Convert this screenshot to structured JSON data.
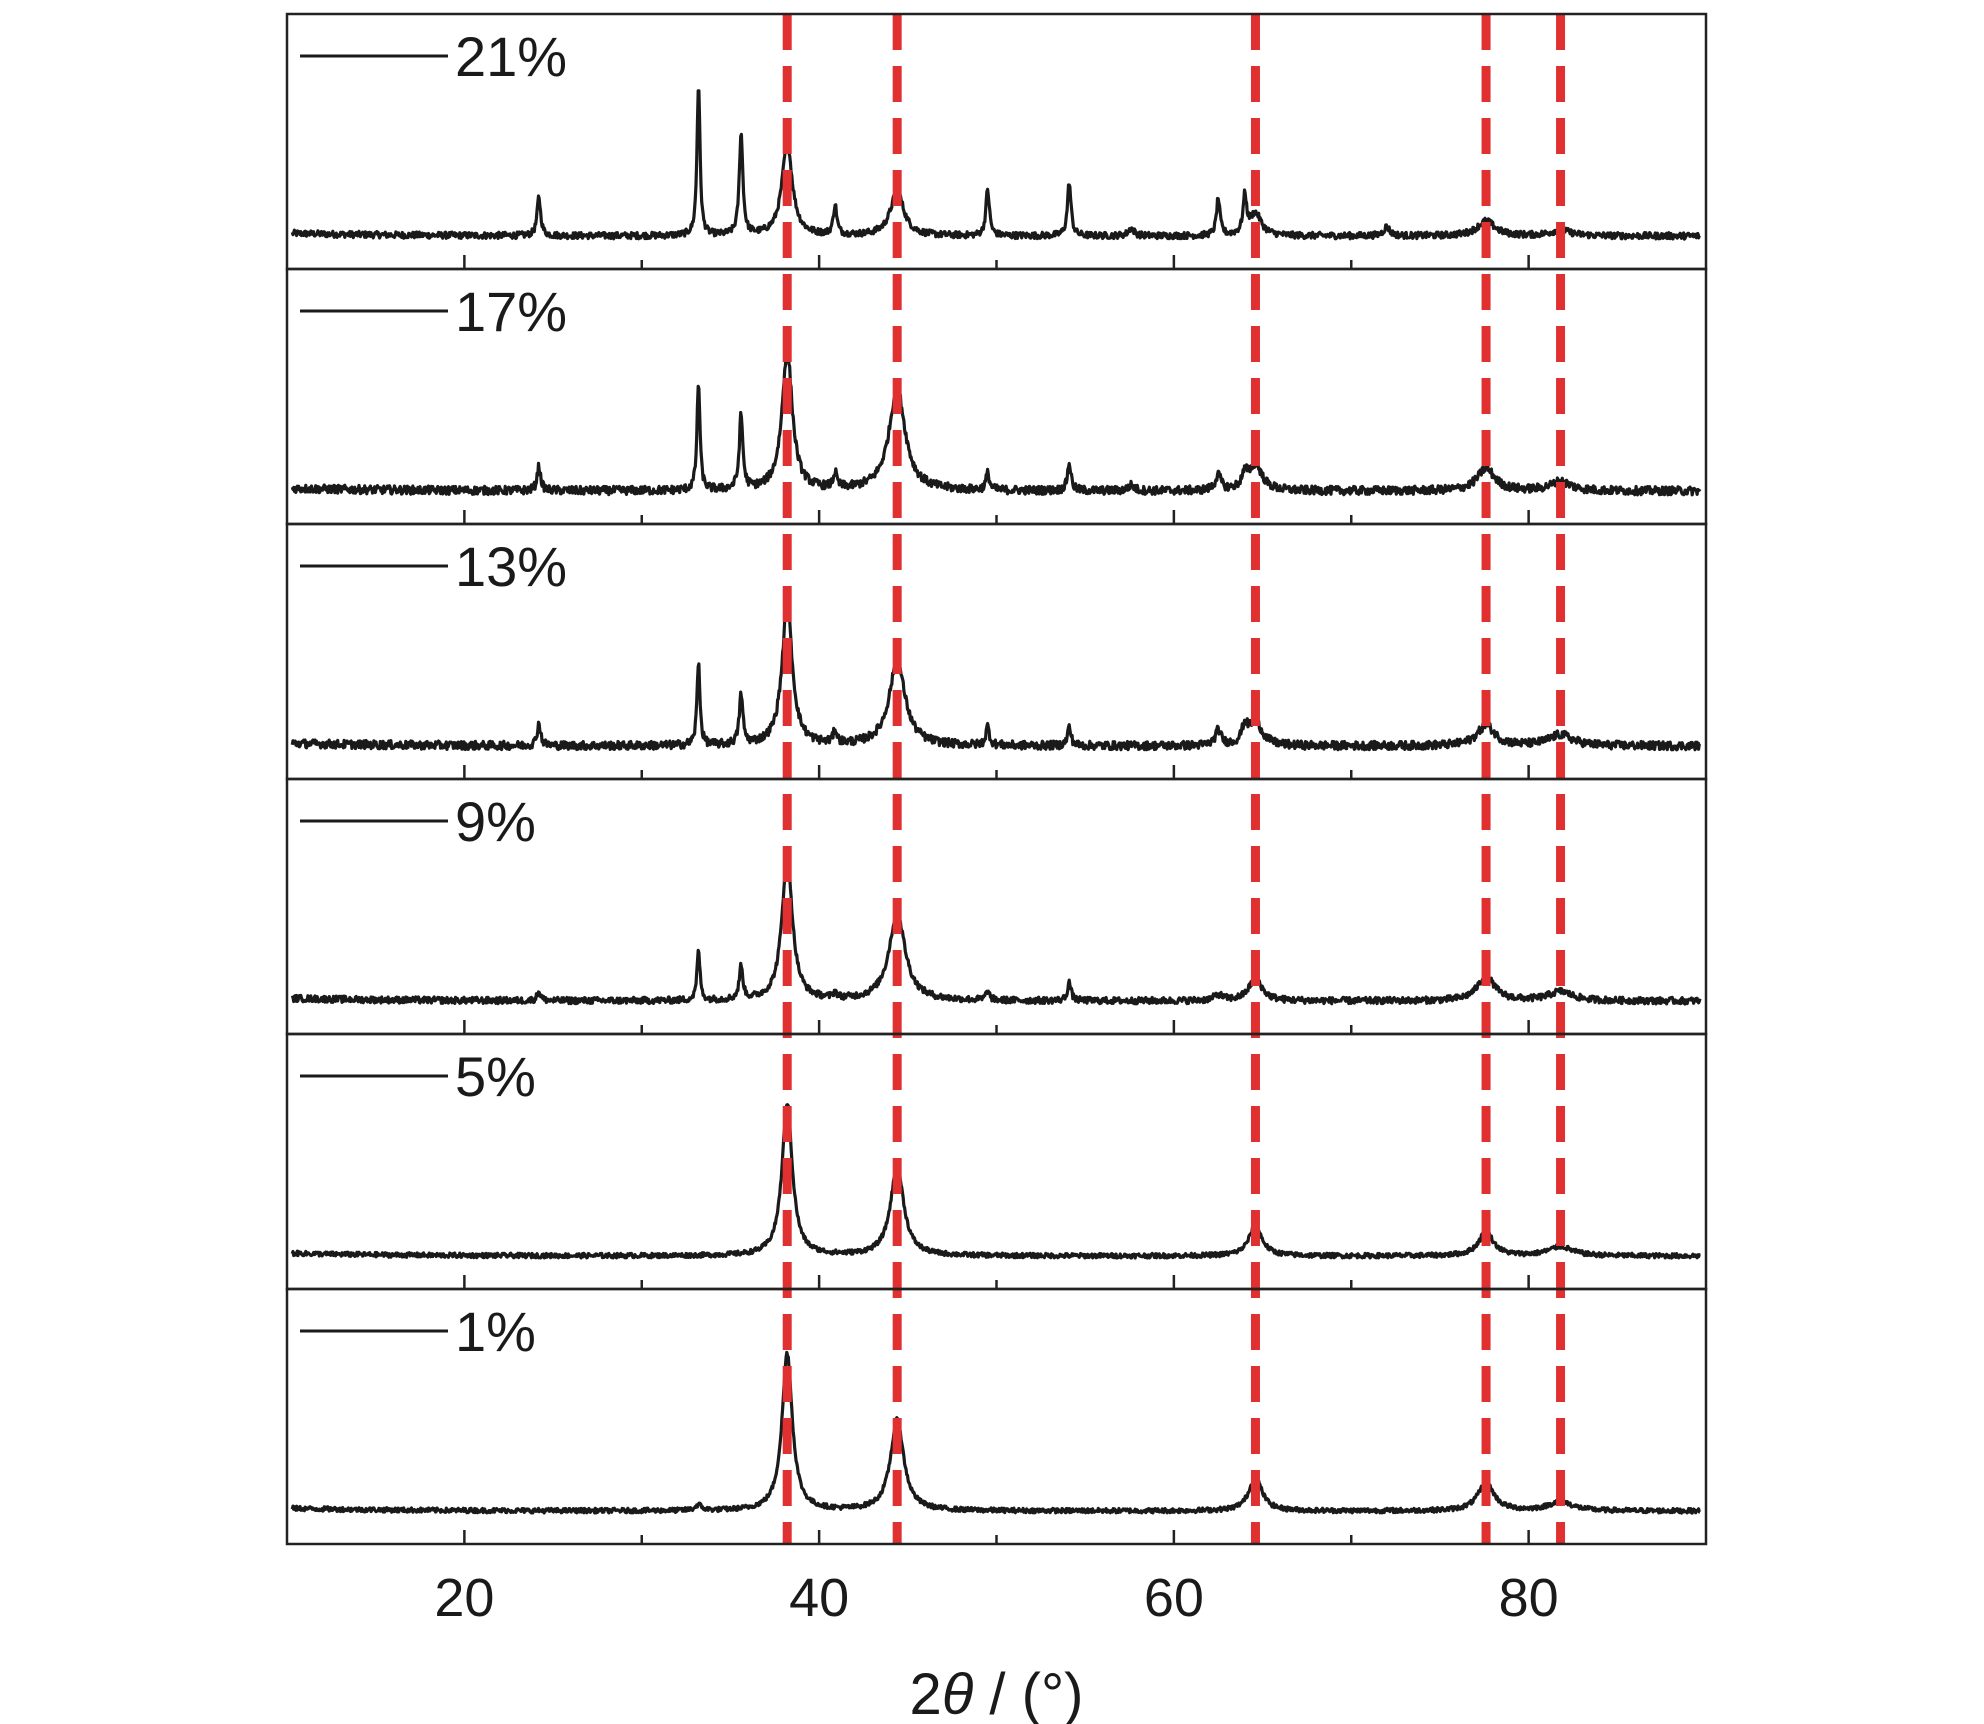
{
  "chart_data": {
    "type": "line",
    "xlabel": "2θ / (°)",
    "xlim": [
      10,
      90
    ],
    "xticks": [
      "20",
      "40",
      "60",
      "80"
    ],
    "grid": false,
    "layout": "stacked panels",
    "reference_lines_2theta": [
      38.2,
      44.4,
      64.6,
      77.6,
      81.8
    ],
    "reference_line_color": "#e03030",
    "trace_color": "#1a1a1a",
    "series": [
      {
        "name": "21%",
        "peaks": [
          {
            "x": 24.2,
            "y": 0.21,
            "w": 0.12
          },
          {
            "x": 33.2,
            "y": 0.82,
            "w": 0.1
          },
          {
            "x": 35.6,
            "y": 0.55,
            "w": 0.12
          },
          {
            "x": 38.2,
            "y": 0.5,
            "w": 0.35
          },
          {
            "x": 40.9,
            "y": 0.16,
            "w": 0.12
          },
          {
            "x": 44.4,
            "y": 0.24,
            "w": 0.45
          },
          {
            "x": 49.5,
            "y": 0.25,
            "w": 0.12
          },
          {
            "x": 54.1,
            "y": 0.29,
            "w": 0.12
          },
          {
            "x": 57.6,
            "y": 0.04,
            "w": 0.2
          },
          {
            "x": 62.5,
            "y": 0.2,
            "w": 0.12
          },
          {
            "x": 64.0,
            "y": 0.2,
            "w": 0.12
          },
          {
            "x": 64.6,
            "y": 0.12,
            "w": 0.4
          },
          {
            "x": 72.0,
            "y": 0.05,
            "w": 0.2
          },
          {
            "x": 77.6,
            "y": 0.08,
            "w": 0.6
          },
          {
            "x": 81.8,
            "y": 0.03,
            "w": 0.7
          }
        ]
      },
      {
        "name": "17%",
        "peaks": [
          {
            "x": 24.2,
            "y": 0.13,
            "w": 0.12
          },
          {
            "x": 33.2,
            "y": 0.58,
            "w": 0.1
          },
          {
            "x": 35.6,
            "y": 0.4,
            "w": 0.12
          },
          {
            "x": 38.2,
            "y": 0.75,
            "w": 0.35
          },
          {
            "x": 40.9,
            "y": 0.08,
            "w": 0.12
          },
          {
            "x": 44.4,
            "y": 0.55,
            "w": 0.55
          },
          {
            "x": 49.5,
            "y": 0.09,
            "w": 0.12
          },
          {
            "x": 54.1,
            "y": 0.15,
            "w": 0.12
          },
          {
            "x": 57.6,
            "y": 0.03,
            "w": 0.2
          },
          {
            "x": 62.5,
            "y": 0.08,
            "w": 0.2
          },
          {
            "x": 64.0,
            "y": 0.07,
            "w": 0.2
          },
          {
            "x": 64.6,
            "y": 0.14,
            "w": 0.45
          },
          {
            "x": 77.6,
            "y": 0.12,
            "w": 0.6
          },
          {
            "x": 81.8,
            "y": 0.05,
            "w": 0.7
          }
        ]
      },
      {
        "name": "13%",
        "peaks": [
          {
            "x": 24.2,
            "y": 0.12,
            "w": 0.12
          },
          {
            "x": 33.2,
            "y": 0.45,
            "w": 0.1
          },
          {
            "x": 35.6,
            "y": 0.27,
            "w": 0.12
          },
          {
            "x": 38.2,
            "y": 0.76,
            "w": 0.35
          },
          {
            "x": 40.9,
            "y": 0.07,
            "w": 0.12
          },
          {
            "x": 44.4,
            "y": 0.45,
            "w": 0.55
          },
          {
            "x": 49.5,
            "y": 0.1,
            "w": 0.12
          },
          {
            "x": 54.1,
            "y": 0.1,
            "w": 0.12
          },
          {
            "x": 62.5,
            "y": 0.08,
            "w": 0.2
          },
          {
            "x": 64.0,
            "y": 0.09,
            "w": 0.2
          },
          {
            "x": 64.6,
            "y": 0.13,
            "w": 0.45
          },
          {
            "x": 77.6,
            "y": 0.11,
            "w": 0.6
          },
          {
            "x": 81.8,
            "y": 0.06,
            "w": 0.8
          }
        ]
      },
      {
        "name": "9%",
        "peaks": [
          {
            "x": 24.2,
            "y": 0.05,
            "w": 0.12
          },
          {
            "x": 33.2,
            "y": 0.27,
            "w": 0.1
          },
          {
            "x": 35.6,
            "y": 0.18,
            "w": 0.12
          },
          {
            "x": 38.2,
            "y": 0.78,
            "w": 0.35
          },
          {
            "x": 40.9,
            "y": 0.03,
            "w": 0.12
          },
          {
            "x": 44.4,
            "y": 0.47,
            "w": 0.55
          },
          {
            "x": 49.5,
            "y": 0.05,
            "w": 0.12
          },
          {
            "x": 54.1,
            "y": 0.1,
            "w": 0.12
          },
          {
            "x": 62.5,
            "y": 0.03,
            "w": 0.3
          },
          {
            "x": 64.6,
            "y": 0.12,
            "w": 0.45
          },
          {
            "x": 77.6,
            "y": 0.13,
            "w": 0.6
          },
          {
            "x": 81.8,
            "y": 0.05,
            "w": 0.8
          }
        ]
      },
      {
        "name": "5%",
        "peaks": [
          {
            "x": 38.2,
            "y": 0.82,
            "w": 0.35
          },
          {
            "x": 44.4,
            "y": 0.48,
            "w": 0.45
          },
          {
            "x": 64.6,
            "y": 0.16,
            "w": 0.45
          },
          {
            "x": 77.6,
            "y": 0.13,
            "w": 0.5
          },
          {
            "x": 81.8,
            "y": 0.05,
            "w": 0.8
          }
        ]
      },
      {
        "name": "1%",
        "peaks": [
          {
            "x": 33.2,
            "y": 0.03,
            "w": 0.2
          },
          {
            "x": 38.2,
            "y": 0.85,
            "w": 0.35
          },
          {
            "x": 44.4,
            "y": 0.49,
            "w": 0.45
          },
          {
            "x": 64.6,
            "y": 0.18,
            "w": 0.45
          },
          {
            "x": 77.6,
            "y": 0.15,
            "w": 0.55
          },
          {
            "x": 81.8,
            "y": 0.05,
            "w": 0.8
          }
        ]
      }
    ]
  }
}
